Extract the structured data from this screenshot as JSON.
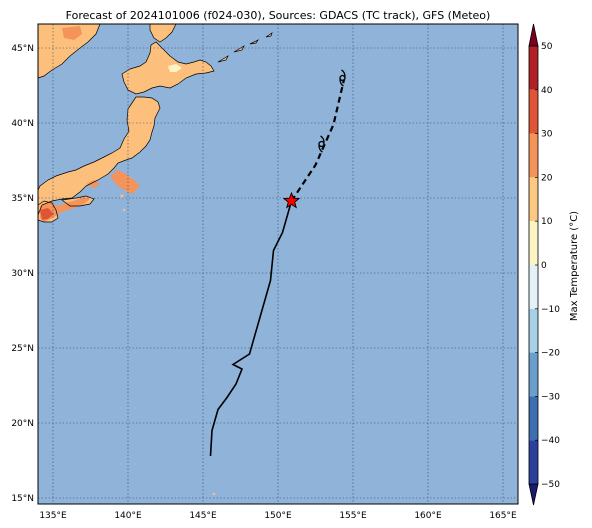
{
  "title": "Forecast of 2024101006 (f024-030), Sources: GDACS (TC track), GFS (Meteo)",
  "colorbar": {
    "label": "Max Temperature (°C)",
    "ticks": [
      "50",
      "40",
      "30",
      "20",
      "10",
      "0",
      "−10",
      "−20",
      "−30",
      "−40",
      "−50"
    ],
    "colors": [
      "#1a1a6e",
      "#2c3f9a",
      "#3d6eb0",
      "#6a9fcd",
      "#a8d0e6",
      "#e4f2f8",
      "#fdf4c6",
      "#fdc982",
      "#f4945a",
      "#df5437",
      "#b11f26",
      "#7d0021"
    ]
  },
  "map": {
    "ocean_color": "#8fb3d9",
    "land_color": "#fcc07c",
    "lon_ticks": [
      "135°E",
      "140°E",
      "145°E",
      "150°E",
      "155°E",
      "160°E",
      "165°E"
    ],
    "lat_ticks": [
      "45°N",
      "40°N",
      "35°N",
      "30°N",
      "25°N",
      "20°N",
      "15°N"
    ],
    "lon_range": [
      134,
      166
    ],
    "lat_range": [
      14.6,
      46.6
    ]
  },
  "track": {
    "past": [
      [
        145.5,
        17.8
      ],
      [
        145.6,
        19.5
      ],
      [
        146.0,
        20.9
      ],
      [
        146.6,
        21.7
      ],
      [
        147.2,
        22.6
      ],
      [
        147.6,
        23.6
      ],
      [
        147.0,
        23.9
      ],
      [
        148.1,
        24.6
      ],
      [
        149.5,
        29.5
      ],
      [
        149.7,
        31.5
      ],
      [
        150.3,
        32.7
      ],
      [
        150.9,
        34.8
      ]
    ],
    "forecast": [
      [
        150.9,
        34.8
      ],
      [
        152.5,
        37.2
      ],
      [
        153.7,
        39.9
      ],
      [
        154.4,
        42.9
      ]
    ],
    "current_position": [
      150.9,
      34.8
    ],
    "storm_symbol_positions": [
      [
        152.9,
        38.6
      ],
      [
        154.3,
        43.0
      ]
    ],
    "past_color": "#000000",
    "forecast_color": "#000000",
    "marker_color": "#ff0000"
  }
}
